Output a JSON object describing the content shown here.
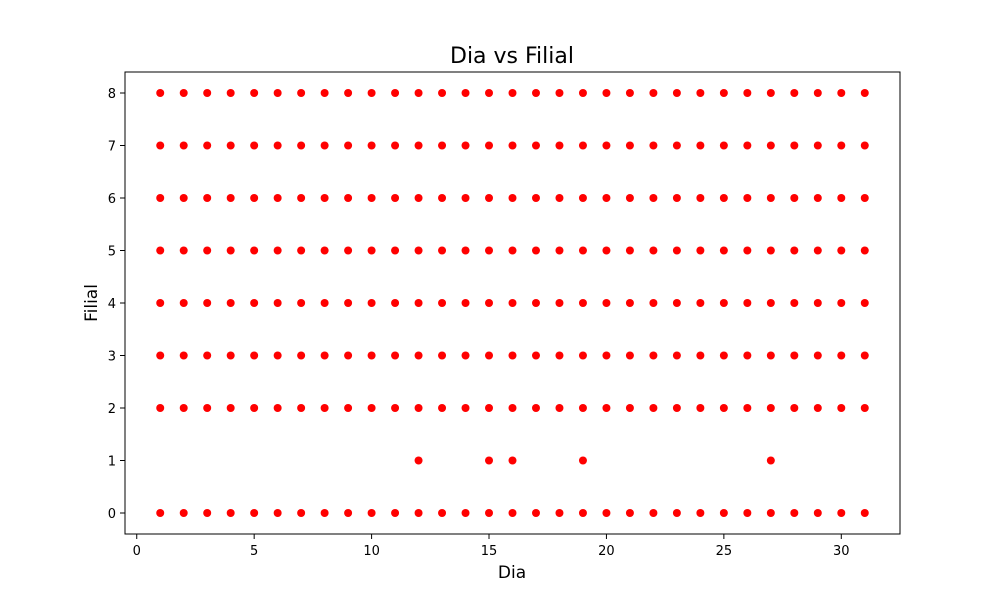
{
  "chart_data": {
    "type": "scatter",
    "title": "Dia vs Filial",
    "xlabel": "Dia",
    "ylabel": "Filial",
    "xlim": [
      -0.5,
      32.5
    ],
    "ylim": [
      -0.4,
      8.4
    ],
    "xticks": [
      0,
      5,
      10,
      15,
      20,
      25,
      30
    ],
    "yticks": [
      0,
      1,
      2,
      3,
      4,
      5,
      6,
      7,
      8
    ],
    "grid": false,
    "legend": "none",
    "marker_color": "#ff0000",
    "series": [
      {
        "full_rows": [
          0,
          2,
          3,
          4,
          5,
          6,
          7,
          8
        ],
        "x_range": [
          1,
          31
        ],
        "extra_points": [
          {
            "x": 12,
            "y": 1
          },
          {
            "x": 15,
            "y": 1
          },
          {
            "x": 16,
            "y": 1
          },
          {
            "x": 19,
            "y": 1
          },
          {
            "x": 27,
            "y": 1
          }
        ]
      }
    ]
  }
}
